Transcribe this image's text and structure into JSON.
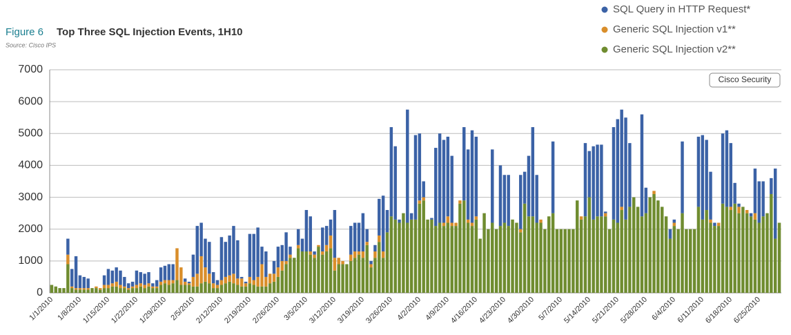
{
  "chart_data": {
    "type": "stacked_bar",
    "figure_label": "Figure 6",
    "title": "Top Three SQL Injection Events, 1H10",
    "subtitle": "Source: Cisco IPS",
    "annotation": "Cisco Security",
    "legend": "top-right",
    "grid": true,
    "ylim": [
      0,
      7000
    ],
    "yticks": [
      0,
      1000,
      2000,
      3000,
      4000,
      5000,
      6000,
      7000
    ],
    "categories": [
      "1/1/2010",
      null,
      null,
      null,
      null,
      null,
      null,
      "1/8/2010",
      null,
      null,
      null,
      null,
      null,
      null,
      "1/15/2010",
      null,
      null,
      null,
      null,
      null,
      null,
      "1/22/2010",
      null,
      null,
      null,
      null,
      null,
      null,
      "1/29/2010",
      null,
      null,
      null,
      null,
      null,
      null,
      "2/5/2010",
      null,
      null,
      null,
      null,
      null,
      null,
      "2/12/2010",
      null,
      null,
      null,
      null,
      null,
      null,
      "2/19/2010",
      null,
      null,
      null,
      null,
      null,
      null,
      "2/26/2010",
      null,
      null,
      null,
      null,
      null,
      null,
      "3/5/2010",
      null,
      null,
      null,
      null,
      null,
      null,
      "3/12/2010",
      null,
      null,
      null,
      null,
      null,
      null,
      "3/19/2010",
      null,
      null,
      null,
      null,
      null,
      null,
      "3/26/2010",
      null,
      null,
      null,
      null,
      null,
      null,
      "4/2/2010",
      null,
      null,
      null,
      null,
      null,
      null,
      "4/9/2010",
      null,
      null,
      null,
      null,
      null,
      null,
      "4/16/2010",
      null,
      null,
      null,
      null,
      null,
      null,
      "4/23/2010",
      null,
      null,
      null,
      null,
      null,
      null,
      "4/30/2010",
      null,
      null,
      null,
      null,
      null,
      null,
      "5/7/2010",
      null,
      null,
      null,
      null,
      null,
      null,
      "5/14/2010",
      null,
      null,
      null,
      null,
      null,
      null,
      "5/21/2010",
      null,
      null,
      null,
      null,
      null,
      null,
      "5/28/2010",
      null,
      null,
      null,
      null,
      null,
      null,
      "6/4/2010",
      null,
      null,
      null,
      null,
      null,
      null,
      "6/11/2010",
      null,
      null,
      null,
      null,
      null,
      null,
      "6/18/2010",
      null,
      null,
      null,
      null,
      null,
      null,
      "6/25/2010",
      null,
      null,
      null,
      null,
      null
    ],
    "series": [
      {
        "name": "SQL Query in HTTP Request*",
        "color": "#3b62a6",
        "values": [
          0,
          0,
          0,
          0,
          500,
          550,
          1000,
          400,
          350,
          300,
          0,
          0,
          0,
          300,
          500,
          400,
          450,
          450,
          300,
          150,
          150,
          450,
          350,
          350,
          350,
          100,
          200,
          450,
          450,
          500,
          500,
          0,
          0,
          100,
          50,
          700,
          1500,
          1050,
          900,
          1000,
          350,
          150,
          1350,
          1100,
          1250,
          1500,
          1200,
          50,
          50,
          1350,
          1450,
          1550,
          550,
          800,
          0,
          400,
          650,
          500,
          900,
          250,
          0,
          500,
          400,
          1300,
          1100,
          100,
          0,
          750,
          600,
          500,
          1500,
          0,
          0,
          0,
          900,
          900,
          900,
          1200,
          400,
          100,
          200,
          1150,
          1750,
          700,
          2800,
          2300,
          100,
          0,
          3550,
          200,
          2650,
          2100,
          500,
          0,
          50,
          2450,
          2800,
          2600,
          2500,
          2100,
          0,
          0,
          2300,
          2200,
          2900,
          2500,
          0,
          0,
          0,
          2300,
          0,
          1900,
          1500,
          1600,
          0,
          0,
          1700,
          1000,
          1900,
          2800,
          1500,
          0,
          0,
          0,
          2250,
          0,
          0,
          0,
          0,
          0,
          0,
          0,
          2300,
          1450,
          2300,
          2250,
          2250,
          50,
          0,
          2900,
          3250,
          3050,
          3200,
          2000,
          0,
          0,
          3200,
          800,
          0,
          0,
          0,
          0,
          0,
          300,
          100,
          0,
          2250,
          0,
          0,
          0,
          2200,
          2650,
          2200,
          1500,
          100,
          0,
          2200,
          2400,
          2000,
          650,
          100,
          0,
          0,
          100,
          1400,
          1300,
          1100,
          0,
          500,
          2200,
          0
        ]
      },
      {
        "name": "Generic SQL Injection v1**",
        "color": "#d98e2b",
        "values": [
          0,
          0,
          0,
          0,
          300,
          50,
          50,
          50,
          50,
          50,
          0,
          50,
          50,
          100,
          100,
          100,
          150,
          100,
          50,
          50,
          50,
          100,
          100,
          100,
          100,
          50,
          50,
          100,
          100,
          150,
          100,
          1000,
          550,
          100,
          50,
          300,
          400,
          850,
          450,
          300,
          150,
          100,
          150,
          200,
          200,
          300,
          200,
          250,
          100,
          200,
          150,
          300,
          700,
          300,
          300,
          250,
          300,
          300,
          100,
          100,
          0,
          100,
          0,
          0,
          100,
          100,
          50,
          100,
          200,
          400,
          400,
          200,
          100,
          0,
          200,
          200,
          100,
          200,
          100,
          100,
          200,
          200,
          200,
          0,
          0,
          0,
          0,
          0,
          0,
          0,
          0,
          100,
          100,
          0,
          0,
          0,
          0,
          100,
          200,
          100,
          100,
          100,
          0,
          100,
          100,
          100,
          0,
          0,
          0,
          0,
          0,
          0,
          0,
          0,
          0,
          0,
          100,
          0,
          0,
          0,
          0,
          100,
          0,
          0,
          0,
          0,
          0,
          0,
          0,
          0,
          0,
          100,
          0,
          0,
          0,
          0,
          0,
          100,
          0,
          0,
          0,
          100,
          0,
          0,
          0,
          0,
          0,
          0,
          0,
          100,
          0,
          0,
          0,
          0,
          100,
          0,
          0,
          0,
          0,
          0,
          0,
          0,
          0,
          100,
          0,
          100,
          0,
          0,
          100,
          0,
          200,
          0,
          100,
          0,
          200,
          0,
          0,
          0,
          0,
          0,
          0
        ]
      },
      {
        "name": "Generic SQL Injection v2**",
        "color": "#6f8c30",
        "values": [
          250,
          200,
          150,
          150,
          900,
          150,
          100,
          100,
          100,
          100,
          150,
          150,
          100,
          150,
          150,
          200,
          200,
          150,
          150,
          100,
          150,
          150,
          200,
          150,
          200,
          150,
          150,
          250,
          300,
          250,
          300,
          400,
          250,
          250,
          250,
          200,
          200,
          300,
          350,
          300,
          150,
          150,
          250,
          300,
          350,
          300,
          250,
          200,
          200,
          300,
          250,
          200,
          200,
          200,
          300,
          350,
          500,
          700,
          900,
          1100,
          1100,
          1400,
          1300,
          1300,
          1200,
          1100,
          1450,
          1200,
          1300,
          1400,
          700,
          900,
          900,
          900,
          1000,
          1100,
          1200,
          1100,
          1500,
          800,
          1100,
          1600,
          1100,
          1900,
          2400,
          2300,
          2200,
          2500,
          2200,
          2300,
          2300,
          2800,
          2900,
          2300,
          2300,
          2100,
          2200,
          2100,
          2200,
          2100,
          2100,
          2800,
          2900,
          2200,
          2100,
          2300,
          1700,
          2500,
          2000,
          2200,
          2000,
          2100,
          2200,
          2100,
          2300,
          2200,
          1900,
          2800,
          2400,
          2400,
          2200,
          2200,
          2000,
          2400,
          2500,
          2000,
          2000,
          2000,
          2000,
          2000,
          2900,
          2300,
          2400,
          3000,
          2300,
          2400,
          2400,
          2400,
          2000,
          2300,
          2200,
          2600,
          2300,
          2700,
          3000,
          2700,
          2400,
          2500,
          3000,
          3100,
          2900,
          2700,
          2400,
          1700,
          2100,
          2000,
          2500,
          2000,
          2000,
          2000,
          2700,
          2300,
          2600,
          2200,
          2100,
          2100,
          2800,
          2700,
          2600,
          2800,
          2500,
          2700,
          2500,
          2400,
          2300,
          2200,
          2400,
          2500,
          3100,
          1700,
          2200
        ]
      }
    ]
  }
}
